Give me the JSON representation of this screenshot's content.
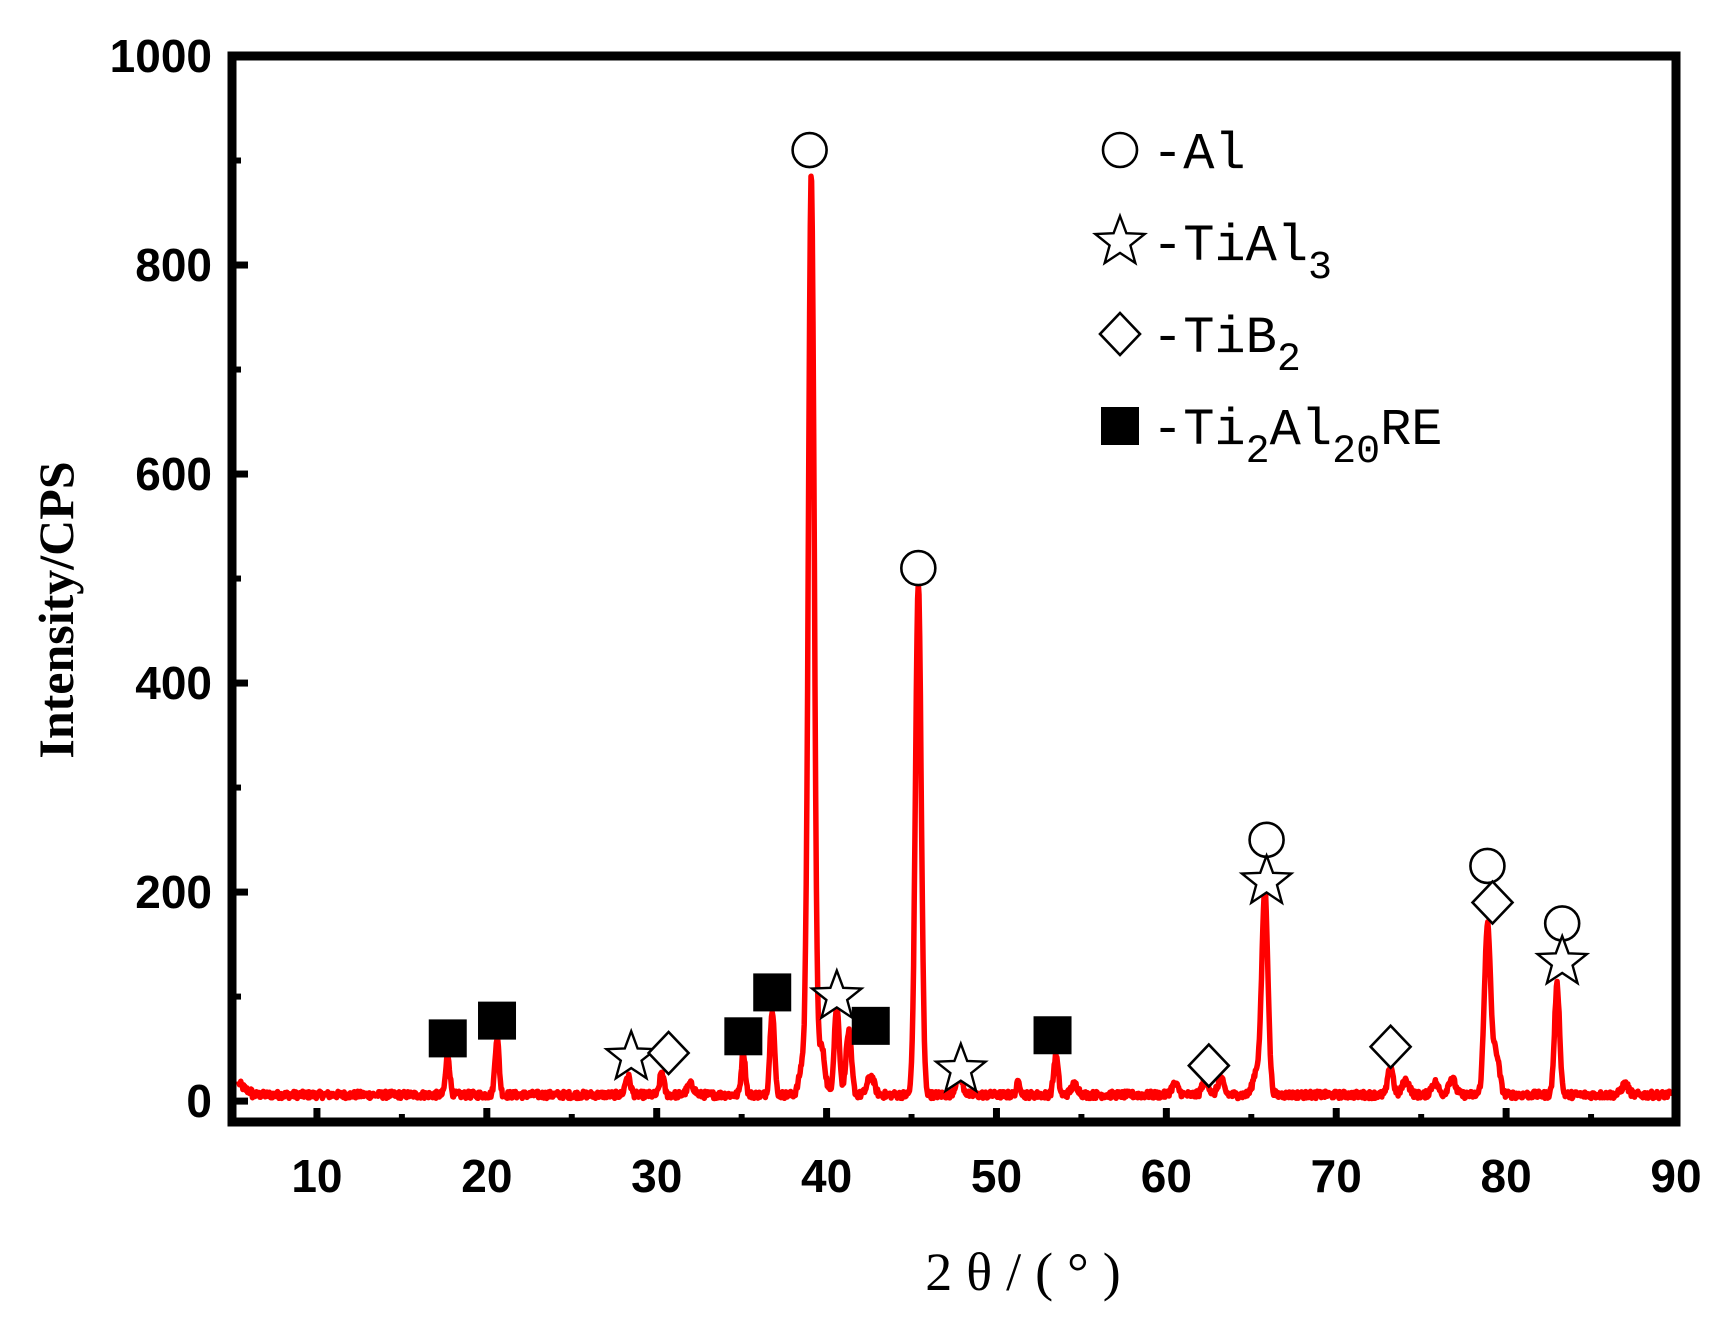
{
  "chart_data": {
    "type": "line",
    "xlabel": "2θ/(°)",
    "ylabel": "Intensity/CPS",
    "xlim": [
      5,
      90
    ],
    "ylim": [
      -20,
      1000
    ],
    "x_ticks": [
      10,
      20,
      30,
      40,
      50,
      60,
      70,
      80,
      90
    ],
    "y_ticks": [
      0,
      200,
      400,
      600,
      800,
      1000
    ],
    "grid": false,
    "colors": {
      "line": "#ff0000",
      "axis": "#000000"
    },
    "legend_position": "top-right",
    "legend": [
      {
        "marker": "circle",
        "prefix": "-Al",
        "sub1": "",
        "mid": "",
        "sub2": "",
        "suffix": ""
      },
      {
        "marker": "star",
        "prefix": "-TiAl",
        "sub1": "3",
        "mid": "",
        "sub2": "",
        "suffix": ""
      },
      {
        "marker": "diamond",
        "prefix": "-TiB",
        "sub1": "2",
        "mid": "",
        "sub2": "",
        "suffix": ""
      },
      {
        "marker": "square",
        "prefix": "-Ti",
        "sub1": "2",
        "mid": "Al",
        "sub2": "20",
        "suffix": "RE"
      }
    ],
    "baseline": 6,
    "peaks": [
      {
        "x": 17.7,
        "h": 38,
        "w": 0.12
      },
      {
        "x": 20.6,
        "h": 55,
        "w": 0.12
      },
      {
        "x": 28.3,
        "h": 18,
        "w": 0.15
      },
      {
        "x": 30.3,
        "h": 22,
        "w": 0.12
      },
      {
        "x": 32.0,
        "h": 10,
        "w": 0.2
      },
      {
        "x": 35.1,
        "h": 40,
        "w": 0.12
      },
      {
        "x": 36.8,
        "h": 82,
        "w": 0.13
      },
      {
        "x": 38.6,
        "h": 30,
        "w": 0.2
      },
      {
        "x": 39.1,
        "h": 880,
        "w": 0.17
      },
      {
        "x": 39.7,
        "h": 45,
        "w": 0.2
      },
      {
        "x": 40.6,
        "h": 85,
        "w": 0.15
      },
      {
        "x": 41.3,
        "h": 60,
        "w": 0.16
      },
      {
        "x": 42.6,
        "h": 18,
        "w": 0.2
      },
      {
        "x": 45.4,
        "h": 490,
        "w": 0.17
      },
      {
        "x": 47.8,
        "h": 18,
        "w": 0.2
      },
      {
        "x": 51.3,
        "h": 12,
        "w": 0.12
      },
      {
        "x": 53.5,
        "h": 38,
        "w": 0.13
      },
      {
        "x": 54.6,
        "h": 10,
        "w": 0.2
      },
      {
        "x": 60.5,
        "h": 10,
        "w": 0.2
      },
      {
        "x": 62.3,
        "h": 16,
        "w": 0.18
      },
      {
        "x": 63.2,
        "h": 15,
        "w": 0.18
      },
      {
        "x": 65.3,
        "h": 22,
        "w": 0.2
      },
      {
        "x": 65.8,
        "h": 195,
        "w": 0.18
      },
      {
        "x": 73.2,
        "h": 28,
        "w": 0.15
      },
      {
        "x": 74.1,
        "h": 14,
        "w": 0.2
      },
      {
        "x": 75.8,
        "h": 12,
        "w": 0.2
      },
      {
        "x": 76.8,
        "h": 16,
        "w": 0.2
      },
      {
        "x": 78.9,
        "h": 162,
        "w": 0.18
      },
      {
        "x": 79.4,
        "h": 40,
        "w": 0.2
      },
      {
        "x": 83.0,
        "h": 105,
        "w": 0.15
      },
      {
        "x": 87.0,
        "h": 10,
        "w": 0.2
      }
    ],
    "annotations": [
      {
        "marker": "square",
        "x": 17.7,
        "y": 60
      },
      {
        "marker": "square",
        "x": 20.6,
        "y": 77
      },
      {
        "marker": "star",
        "x": 28.5,
        "y": 42
      },
      {
        "marker": "diamond",
        "x": 30.7,
        "y": 46
      },
      {
        "marker": "square",
        "x": 35.1,
        "y": 62
      },
      {
        "marker": "square",
        "x": 36.8,
        "y": 104
      },
      {
        "marker": "circle",
        "x": 39.0,
        "y": 910
      },
      {
        "marker": "star",
        "x": 40.6,
        "y": 100
      },
      {
        "marker": "square",
        "x": 42.6,
        "y": 72
      },
      {
        "marker": "circle",
        "x": 45.4,
        "y": 510
      },
      {
        "marker": "star",
        "x": 47.9,
        "y": 30
      },
      {
        "marker": "square",
        "x": 53.3,
        "y": 63
      },
      {
        "marker": "diamond",
        "x": 62.5,
        "y": 34
      },
      {
        "marker": "circle",
        "x": 65.9,
        "y": 250
      },
      {
        "marker": "star",
        "x": 65.9,
        "y": 210
      },
      {
        "marker": "diamond",
        "x": 73.2,
        "y": 52
      },
      {
        "marker": "circle",
        "x": 78.9,
        "y": 225
      },
      {
        "marker": "diamond",
        "x": 79.2,
        "y": 190
      },
      {
        "marker": "circle",
        "x": 83.3,
        "y": 170
      },
      {
        "marker": "star",
        "x": 83.3,
        "y": 133
      }
    ]
  }
}
